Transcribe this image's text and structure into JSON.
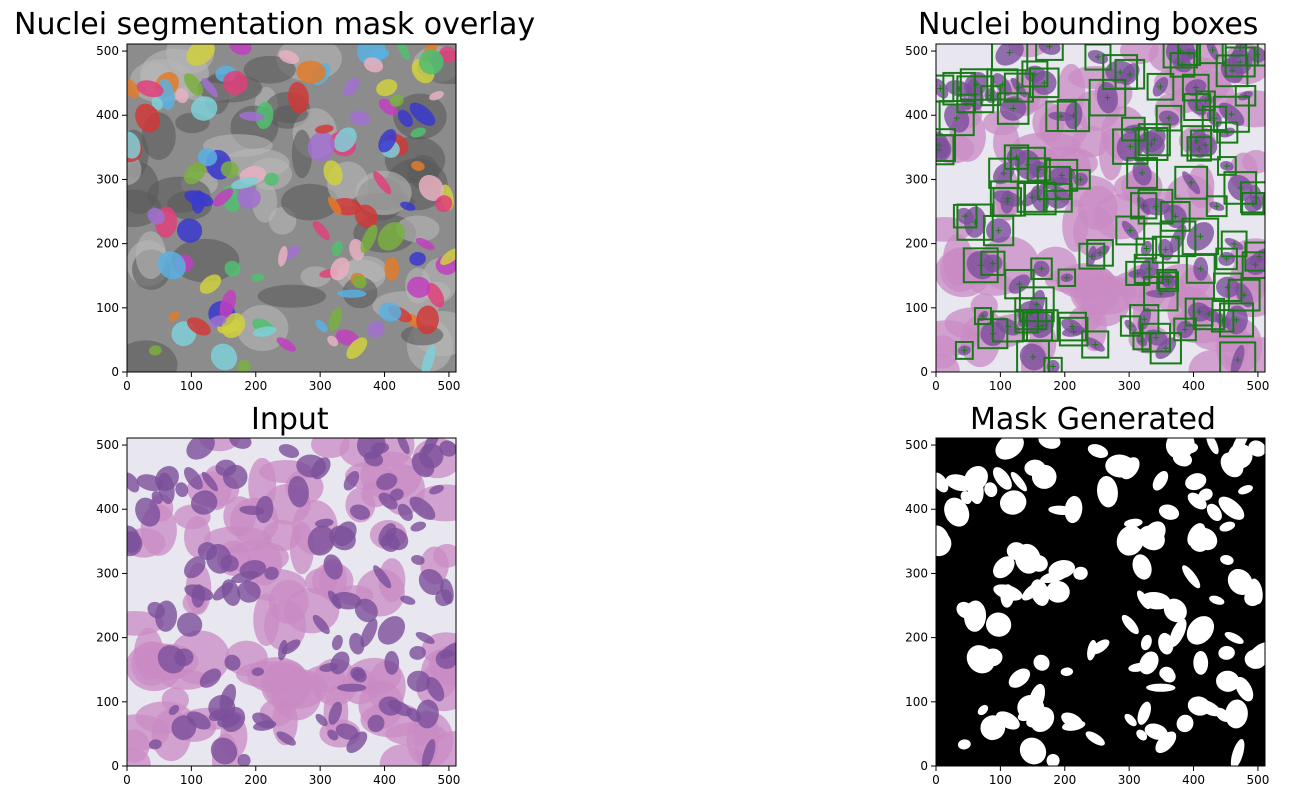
{
  "panels": {
    "overlay": {
      "title": "Nuclei segmentation mask overlay"
    },
    "boxes": {
      "title": "Nuclei bounding boxes"
    },
    "input": {
      "title": "Input"
    },
    "mask": {
      "title": "Mask Generated"
    }
  },
  "axes": {
    "x_ticks": [
      "0",
      "100",
      "200",
      "300",
      "400",
      "500"
    ],
    "y_ticks": [
      "0",
      "100",
      "200",
      "300",
      "400",
      "500"
    ],
    "x_range": [
      0,
      511
    ],
    "y_range": [
      0,
      511
    ]
  },
  "colors": {
    "overlay_bg": "#8c8c8c",
    "tissue_pink": "#c98bc4",
    "nucleus_purple": "#7a4f9a",
    "box_green": "#1a7a1a",
    "mask_bg": "#000000",
    "mask_fg": "#ffffff"
  }
}
